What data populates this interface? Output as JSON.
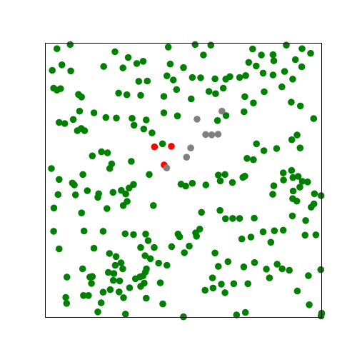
{
  "chart_data": {
    "type": "scatter",
    "title": "",
    "xlabel": "",
    "ylabel": "",
    "xlim": [
      0,
      100
    ],
    "ylim": [
      0,
      100
    ],
    "grid": false,
    "axis_ticks": false,
    "series": [
      {
        "color": "#008000",
        "points": [
          [
            4.2,
            98.0
          ],
          [
            9.0,
            99.5
          ],
          [
            25.2,
            96.9
          ],
          [
            30.0,
            94.8
          ],
          [
            21.1,
            91.5
          ],
          [
            28.1,
            91.0
          ],
          [
            33.1,
            92.6
          ],
          [
            35.4,
            93.4
          ],
          [
            44.5,
            98.6
          ],
          [
            54.2,
            99.5
          ],
          [
            59.9,
            99.3
          ],
          [
            57.2,
            95.7
          ],
          [
            75.0,
            97.9
          ],
          [
            78.2,
            95.7
          ],
          [
            82.4,
            95.8
          ],
          [
            87.2,
            99.3
          ],
          [
            90.5,
            94.0
          ],
          [
            2.5,
            90.1
          ],
          [
            6.0,
            92.1
          ],
          [
            9.2,
            89.9
          ],
          [
            45.2,
            92.4
          ],
          [
            50.0,
            91.1
          ],
          [
            73.6,
            93.0
          ],
          [
            76.3,
            91.7
          ],
          [
            82.7,
            93.6
          ],
          [
            92.9,
            98.0
          ],
          [
            96.0,
            96.3
          ],
          [
            44.0,
            88.1
          ],
          [
            46.3,
            86.6
          ],
          [
            33.8,
            86.1
          ],
          [
            36.9,
            86.2
          ],
          [
            53.2,
            87.5
          ],
          [
            56.2,
            87.4
          ],
          [
            61.4,
            87.0
          ],
          [
            65.3,
            86.9
          ],
          [
            66.8,
            87.8
          ],
          [
            70.3,
            87.5
          ],
          [
            72.5,
            88.2
          ],
          [
            78.8,
            89.1
          ],
          [
            82.4,
            88.4
          ],
          [
            86.6,
            89.7
          ],
          [
            92.8,
            91.4
          ],
          [
            3.0,
            83.6
          ],
          [
            4.2,
            82.9
          ],
          [
            5.5,
            83.4
          ],
          [
            12.0,
            81.3
          ],
          [
            13.1,
            80.4
          ],
          [
            26.5,
            81.8
          ],
          [
            29.5,
            81.2
          ],
          [
            34.5,
            81.0
          ],
          [
            42.9,
            80.6
          ],
          [
            47.5,
            83.1
          ],
          [
            52.8,
            79.7
          ],
          [
            59.2,
            82.4
          ],
          [
            61.6,
            81.6
          ],
          [
            64.4,
            83.6
          ],
          [
            72.2,
            80.5
          ],
          [
            79.2,
            82.3
          ],
          [
            85.6,
            84.1
          ],
          [
            89.5,
            86.9
          ],
          [
            89.0,
            78.5
          ],
          [
            92.3,
            77.1
          ],
          [
            12.4,
            75.2
          ],
          [
            17.6,
            74.6
          ],
          [
            21.9,
            72.9
          ],
          [
            25.7,
            72.7
          ],
          [
            31.4,
            72.6
          ],
          [
            36.5,
            72.0
          ],
          [
            42.9,
            74.6
          ],
          [
            47.8,
            73.5
          ],
          [
            62.3,
            71.8
          ],
          [
            65.4,
            73.6
          ],
          [
            71.9,
            75.0
          ],
          [
            75.3,
            78.2
          ],
          [
            97.1,
            72.5
          ],
          [
            5.0,
            71.1
          ],
          [
            7.0,
            70.7
          ],
          [
            10.1,
            72.2
          ],
          [
            11.6,
            68.1
          ],
          [
            13.0,
            68.9
          ],
          [
            14.2,
            68.1
          ],
          [
            32.1,
            70.1
          ],
          [
            35.6,
            68.7
          ],
          [
            38.6,
            67.3
          ],
          [
            42.4,
            63.3
          ],
          [
            91.1,
            66.5
          ],
          [
            89.2,
            64.8
          ],
          [
            92.2,
            61.8
          ],
          [
            83.7,
            61.6
          ],
          [
            76.4,
            63.3
          ],
          [
            79.1,
            60.8
          ],
          [
            73.0,
            58.0
          ],
          [
            75.3,
            57.5
          ],
          [
            17.0,
            58.9
          ],
          [
            20.3,
            60.4
          ],
          [
            22.5,
            60.0
          ],
          [
            24.0,
            56.0
          ],
          [
            23.3,
            54.3
          ],
          [
            31.1,
            56.9
          ],
          [
            2.2,
            54.3
          ],
          [
            5.0,
            50.3
          ],
          [
            4.6,
            44.8
          ],
          [
            9.8,
            49.0
          ],
          [
            10.5,
            48.3
          ],
          [
            13.6,
            52.1
          ],
          [
            10.9,
            44.7
          ],
          [
            15.2,
            46.2
          ],
          [
            19.3,
            45.1
          ],
          [
            19.0,
            43.8
          ],
          [
            24.5,
            45.6
          ],
          [
            27.5,
            46.3
          ],
          [
            29.1,
            45.0
          ],
          [
            29.6,
            42.3
          ],
          [
            30.3,
            47.2
          ],
          [
            31.9,
            48.5
          ],
          [
            37.6,
            52.1
          ],
          [
            49.1,
            48.6
          ],
          [
            50.8,
            47.9
          ],
          [
            53.2,
            48.9
          ],
          [
            58.1,
            48.3
          ],
          [
            62.6,
            51.9
          ],
          [
            65.0,
            52.1
          ],
          [
            63.3,
            49.8
          ],
          [
            67.7,
            49.2
          ],
          [
            71.5,
            51.1
          ],
          [
            72.2,
            51.5
          ],
          [
            82.7,
            48.0
          ],
          [
            82.3,
            44.9
          ],
          [
            86.2,
            50.1
          ],
          [
            86.1,
            52.7
          ],
          [
            89.1,
            53.6
          ],
          [
            89.6,
            51.0
          ],
          [
            91.5,
            51.4
          ],
          [
            92.1,
            47.5
          ],
          [
            93.0,
            49.6
          ],
          [
            94.9,
            49.4
          ],
          [
            89.7,
            46.1
          ],
          [
            89.5,
            43.3
          ],
          [
            91.0,
            42.4
          ],
          [
            97.4,
            45.1
          ],
          [
            96.2,
            40.2
          ],
          [
            97.2,
            41.4
          ],
          [
            99.8,
            44.4
          ],
          [
            3.1,
            39.9
          ],
          [
            13.1,
            38.1
          ],
          [
            22.3,
            39.7
          ],
          [
            28.2,
            40.8
          ],
          [
            39.1,
            40.8
          ],
          [
            63.2,
            39.0
          ],
          [
            56.5,
            38.3
          ],
          [
            65.2,
            36.0
          ],
          [
            67.8,
            36.1
          ],
          [
            70.3,
            36.1
          ],
          [
            75.6,
            36.2
          ],
          [
            82.9,
            31.6
          ],
          [
            86.1,
            31.8
          ],
          [
            89.4,
            37.0
          ],
          [
            94.2,
            35.3
          ],
          [
            3.0,
            31.4
          ],
          [
            14.0,
            31.5
          ],
          [
            20.9,
            31.4
          ],
          [
            28.9,
            30.5
          ],
          [
            31.9,
            30.2
          ],
          [
            36.3,
            30.4
          ],
          [
            37.2,
            28.0
          ],
          [
            48.0,
            30.4
          ],
          [
            48.6,
            29.4
          ],
          [
            54.4,
            30.8
          ],
          [
            54.7,
            29.6
          ],
          [
            55.9,
            32.2
          ],
          [
            71.1,
            28.6
          ],
          [
            74.4,
            29.3
          ],
          [
            78.8,
            31.2
          ],
          [
            81.6,
            27.4
          ],
          [
            94.0,
            30.0
          ],
          [
            97.9,
            30.1
          ],
          [
            5.0,
            25.0
          ],
          [
            17.6,
            25.2
          ],
          [
            23.2,
            23.3
          ],
          [
            25.6,
            22.2
          ],
          [
            25.3,
            19.0
          ],
          [
            27.4,
            19.9
          ],
          [
            28.0,
            17.7
          ],
          [
            34.5,
            25.5
          ],
          [
            36.1,
            22.5
          ],
          [
            39.4,
            25.5
          ],
          [
            38.0,
            21.4
          ],
          [
            41.0,
            19.8
          ],
          [
            44.0,
            19.0
          ],
          [
            45.7,
            25.8
          ],
          [
            50.3,
            23.6
          ],
          [
            52.1,
            26.0
          ],
          [
            61.4,
            23.5
          ],
          [
            62.6,
            18.6
          ],
          [
            66.1,
            20.3
          ],
          [
            71.8,
            18.4
          ],
          [
            75.7,
            20.0
          ],
          [
            80.0,
            17.6
          ],
          [
            83.9,
            19.4
          ],
          [
            85.7,
            17.7
          ],
          [
            88.3,
            17.2
          ],
          [
            95.2,
            15.2
          ],
          [
            99.7,
            17.4
          ],
          [
            13.5,
            17.7
          ],
          [
            22.8,
            16.4
          ],
          [
            24.8,
            16.0
          ],
          [
            17.0,
            14.9
          ],
          [
            24.6,
            13.5
          ],
          [
            26.9,
            13.3
          ],
          [
            32.6,
            14.1
          ],
          [
            34.3,
            14.8
          ],
          [
            35.3,
            15.1
          ],
          [
            36.6,
            17.7
          ],
          [
            36.2,
            16.5
          ],
          [
            41.6,
            12.6
          ],
          [
            60.5,
            14.4
          ],
          [
            63.7,
            12.1
          ],
          [
            68.2,
            12.3
          ],
          [
            7.8,
            14.7
          ],
          [
            16.1,
            14.7
          ],
          [
            16.7,
            12.4
          ],
          [
            23.5,
            10.1
          ],
          [
            20.9,
            9.2
          ],
          [
            26.7,
            9.3
          ],
          [
            30.5,
            10.8
          ],
          [
            35.8,
            12.5
          ],
          [
            34.5,
            11.3
          ],
          [
            57.8,
            9.9
          ],
          [
            65.0,
            9.0
          ],
          [
            7.4,
            7.3
          ],
          [
            13.8,
            8.0
          ],
          [
            15.6,
            8.0
          ],
          [
            20.2,
            5.3
          ],
          [
            28.3,
            7.2
          ],
          [
            36.5,
            7.0
          ],
          [
            42.5,
            4.9
          ],
          [
            60.7,
            10.7
          ],
          [
            73.3,
            12.3
          ],
          [
            81.1,
            14.4
          ],
          [
            91.2,
            9.6
          ],
          [
            95.5,
            4.6
          ],
          [
            7.7,
            5.1
          ],
          [
            19.0,
            2.0
          ],
          [
            29.0,
            1.2
          ],
          [
            50.0,
            0.2
          ],
          [
            69.2,
            0.9
          ],
          [
            72.4,
            1.8
          ],
          [
            100.0,
            1.5
          ],
          [
            99.8,
            0.5
          ]
        ]
      },
      {
        "color": "#ff0000",
        "points": [
          [
            39.5,
            62.2
          ],
          [
            45.6,
            62.4
          ],
          [
            43.0,
            55.6
          ]
        ]
      },
      {
        "color": "#808080",
        "points": [
          [
            54.9,
            72.3
          ],
          [
            63.9,
            75.2
          ],
          [
            58.0,
            66.7
          ],
          [
            60.2,
            66.6
          ],
          [
            62.5,
            66.8
          ],
          [
            52.6,
            61.8
          ],
          [
            51.1,
            58.4
          ],
          [
            43.9,
            54.5
          ]
        ]
      }
    ]
  }
}
